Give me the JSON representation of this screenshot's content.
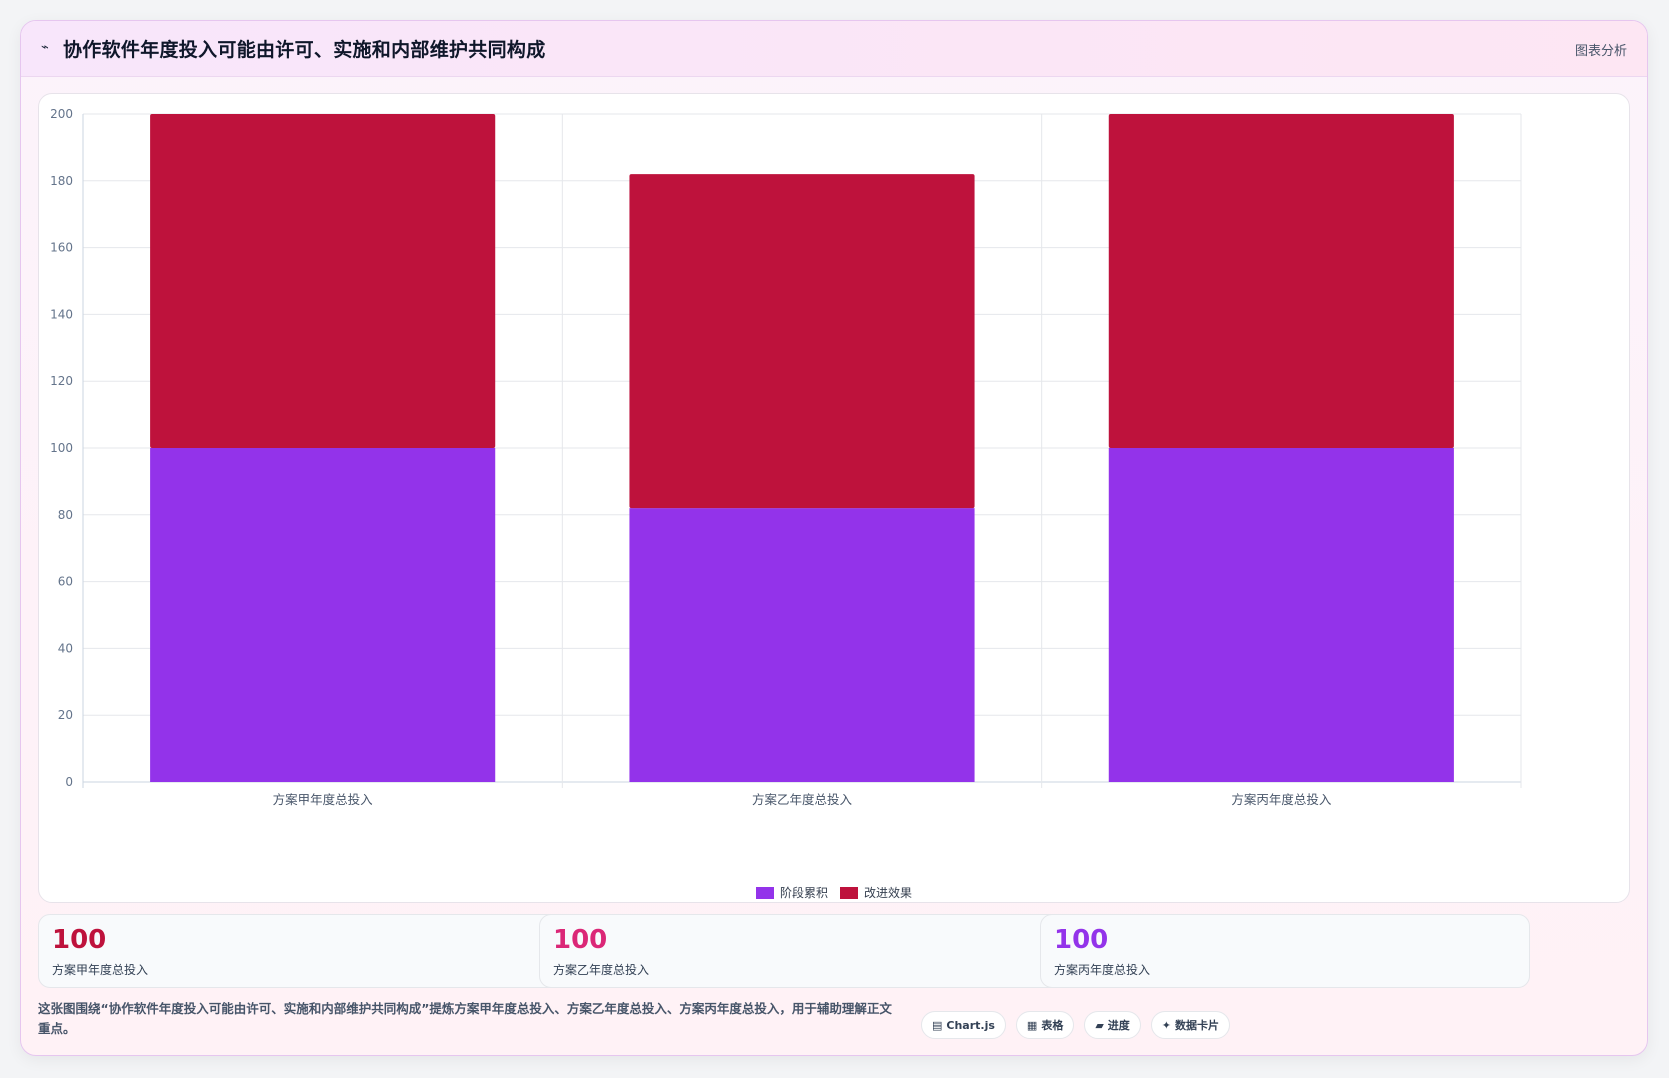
{
  "header": {
    "title": "协作软件年度投入可能由许可、实施和内部维护共同构成",
    "tag": "图表分析"
  },
  "chart_data": {
    "type": "bar",
    "stacked": true,
    "categories": [
      "方案甲年度总投入",
      "方案乙年度总投入",
      "方案丙年度总投入"
    ],
    "series": [
      {
        "name": "阶段累积",
        "values": [
          100,
          82,
          100
        ],
        "color": "#9333ea"
      },
      {
        "name": "改进效果",
        "values": [
          100,
          100,
          100
        ],
        "color": "#be123c"
      }
    ],
    "ylim": [
      0,
      200
    ],
    "yticks": [
      0,
      20,
      40,
      60,
      80,
      100,
      120,
      140,
      160,
      180,
      200
    ],
    "grid": true,
    "legend": "bottom"
  },
  "stats": [
    {
      "value": "100",
      "label": "方案甲年度总投入",
      "color": "#be123c"
    },
    {
      "value": "100",
      "label": "方案乙年度总投入",
      "color": "#db2777"
    },
    {
      "value": "100",
      "label": "方案丙年度总投入",
      "color": "#9333ea"
    }
  ],
  "footer": {
    "text": "这张图围绕“协作软件年度投入可能由许可、实施和内部维护共同构成”提炼方案甲年度总投入、方案乙年度总投入、方案丙年度总投入，用于辅助理解正文重点。",
    "chips": [
      {
        "icon": "▤",
        "label": "Chart.js",
        "icon_name": "chart-icon"
      },
      {
        "icon": "▦",
        "label": "表格",
        "icon_name": "table-icon"
      },
      {
        "icon": "▰",
        "label": "进度",
        "icon_name": "progress-icon"
      },
      {
        "icon": "✦",
        "label": "数据卡片",
        "icon_name": "sparkle-icon"
      }
    ]
  }
}
